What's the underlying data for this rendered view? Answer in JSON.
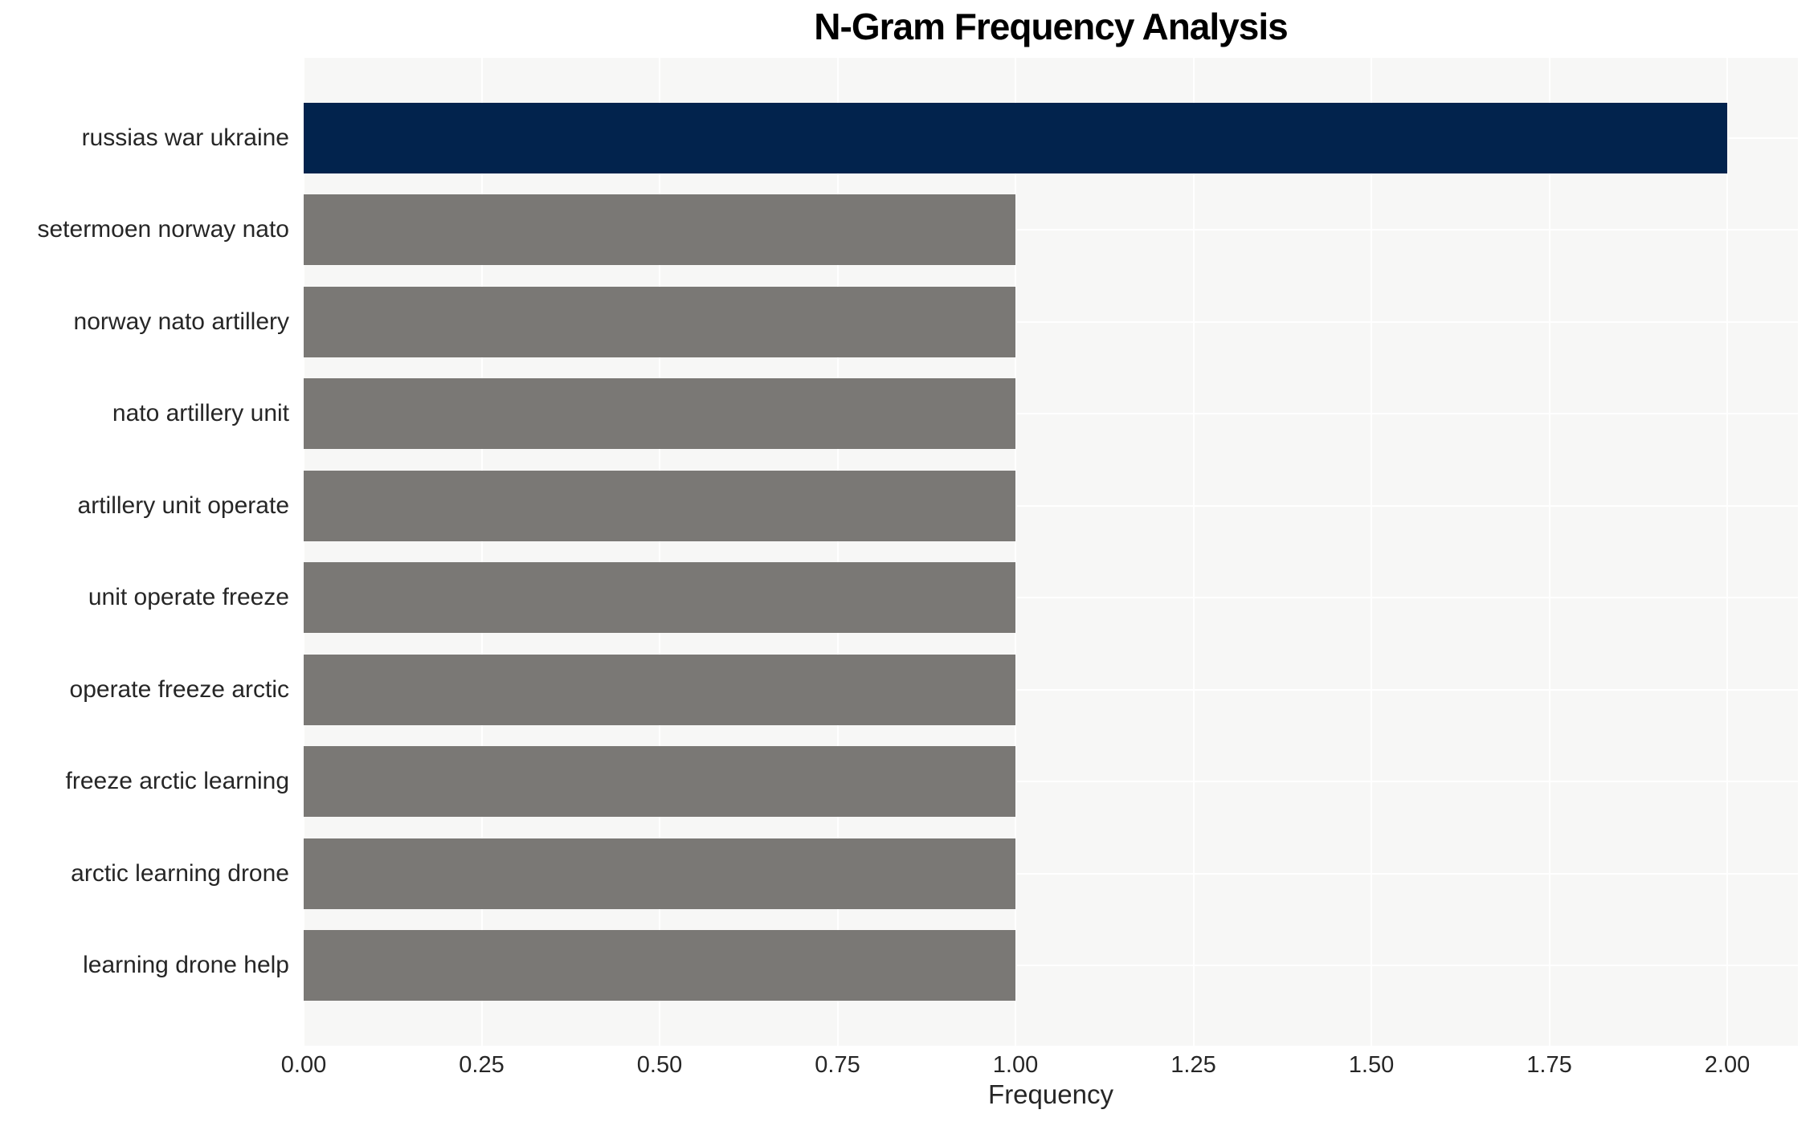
{
  "chart": {
    "title": "N-Gram Frequency Analysis",
    "xlabel": "Frequency"
  },
  "chart_data": {
    "type": "bar",
    "orientation": "horizontal",
    "title": "N-Gram Frequency Analysis",
    "xlabel": "Frequency",
    "ylabel": "",
    "categories": [
      "russias war ukraine",
      "setermoen norway nato",
      "norway nato artillery",
      "nato artillery unit",
      "artillery unit operate",
      "unit operate freeze",
      "operate freeze arctic",
      "freeze arctic learning",
      "arctic learning drone",
      "learning drone help"
    ],
    "values": [
      2,
      1,
      1,
      1,
      1,
      1,
      1,
      1,
      1,
      1
    ],
    "xlim": [
      0,
      2.1
    ],
    "xticks": [
      0,
      0.25,
      0.5,
      0.75,
      1.0,
      1.25,
      1.5,
      1.75,
      2.0
    ],
    "xtick_labels": [
      "0.00",
      "0.25",
      "0.50",
      "0.75",
      "1.00",
      "1.25",
      "1.50",
      "1.75",
      "2.00"
    ],
    "grid": true,
    "legend": false,
    "colors": {
      "highlight_bar": "#02234d",
      "default_bar": "#7a7875",
      "plot_background": "#f7f7f6",
      "gridline": "#ffffff",
      "tick_text": "#262626",
      "title_text": "#000000"
    },
    "bar_colors": [
      "#02234d",
      "#7a7875",
      "#7a7875",
      "#7a7875",
      "#7a7875",
      "#7a7875",
      "#7a7875",
      "#7a7875",
      "#7a7875",
      "#7a7875"
    ]
  }
}
